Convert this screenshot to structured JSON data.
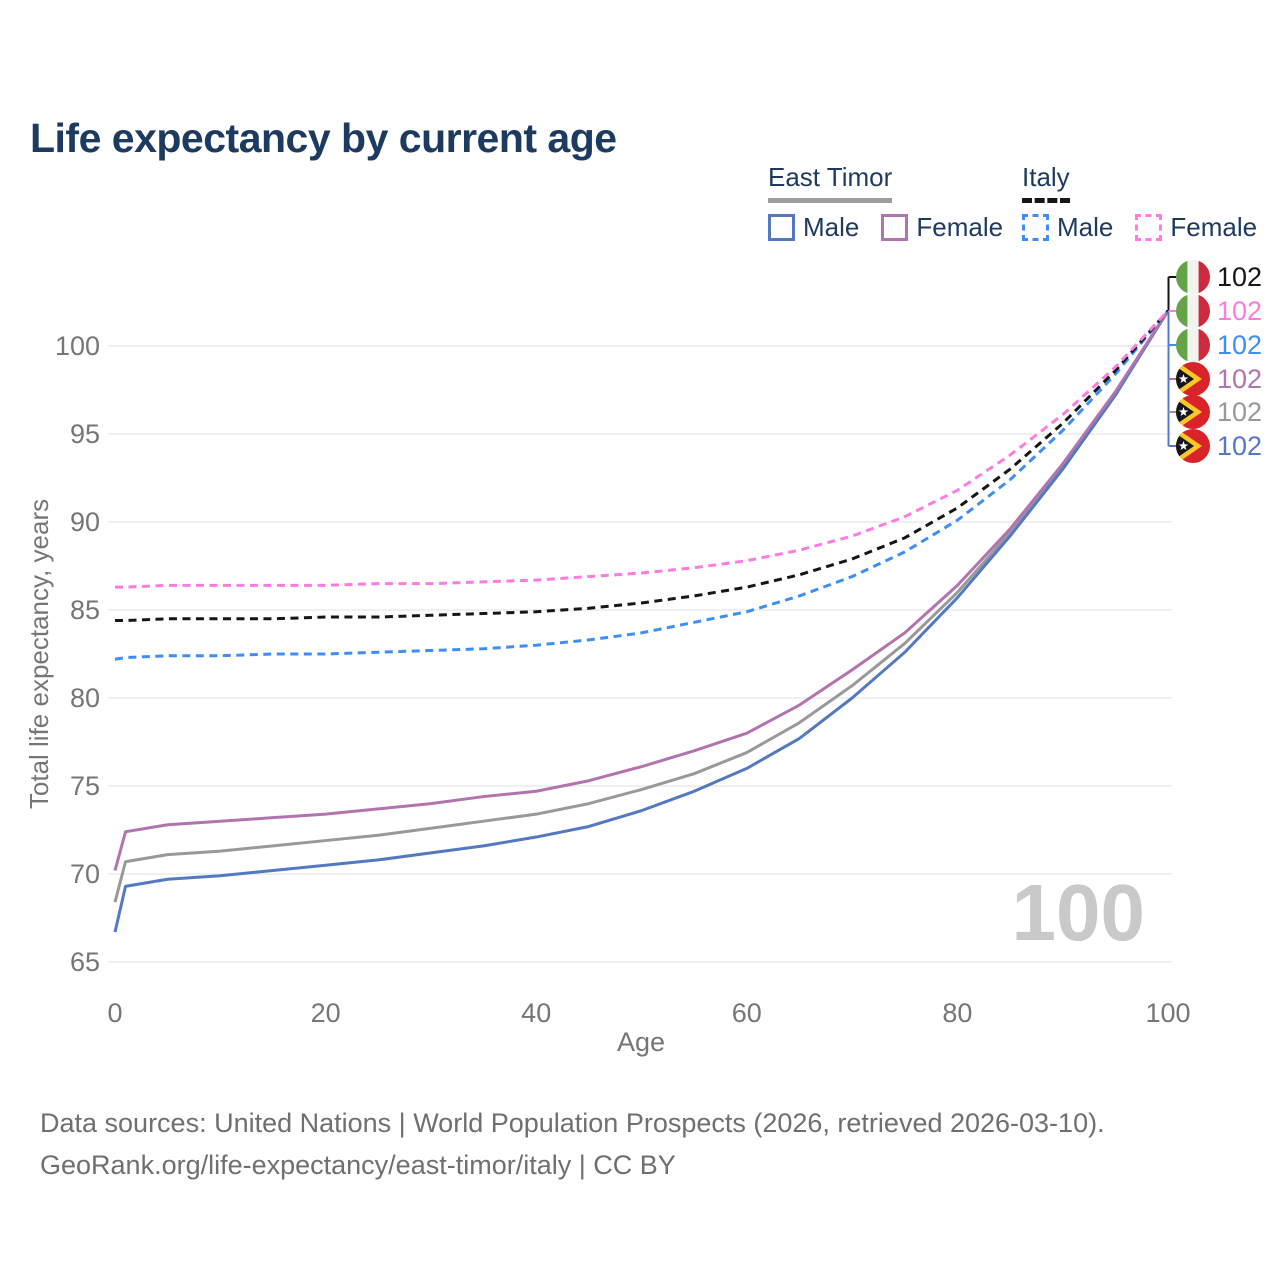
{
  "title": "Life expectancy by current age",
  "legend": {
    "groups": [
      {
        "name": "East Timor",
        "line_style": "solid",
        "underline_color": "#9e9e9e",
        "items": [
          {
            "label": "Male",
            "color": "#5479c1"
          },
          {
            "label": "Female",
            "color": "#b274af"
          }
        ]
      },
      {
        "name": "Italy",
        "line_style": "dashed",
        "underline_color": "#161616",
        "items": [
          {
            "label": "Male",
            "color": "#3e8ef7"
          },
          {
            "label": "Female",
            "color": "#ff7bdf"
          }
        ]
      }
    ]
  },
  "chart_data": {
    "type": "line",
    "title": "Life expectancy by current age",
    "xlabel": "Age",
    "ylabel": "Total life expectancy, years",
    "xlim": [
      0,
      100
    ],
    "ylim": [
      65,
      103.5
    ],
    "xticks": [
      0,
      20,
      40,
      60,
      80,
      100
    ],
    "yticks": [
      65,
      70,
      75,
      80,
      85,
      90,
      95,
      100
    ],
    "grid": "horizontal",
    "legend_position": "top-right",
    "x": [
      0,
      1,
      5,
      10,
      15,
      20,
      25,
      30,
      35,
      40,
      45,
      50,
      55,
      60,
      65,
      70,
      75,
      80,
      85,
      90,
      95,
      100
    ],
    "series": [
      {
        "name": "East Timor",
        "sex": "both",
        "color": "#999999",
        "dashed": false,
        "values": [
          68.4,
          70.7,
          71.1,
          71.3,
          71.6,
          71.9,
          72.2,
          72.6,
          73.0,
          73.4,
          74.0,
          74.8,
          75.7,
          76.9,
          78.6,
          80.7,
          83.1,
          86.0,
          89.4,
          93.1,
          97.3,
          102
        ]
      },
      {
        "name": "East Timor Male",
        "sex": "male",
        "color": "#5479c1",
        "dashed": false,
        "values": [
          66.7,
          69.3,
          69.7,
          69.9,
          70.2,
          70.5,
          70.8,
          71.2,
          71.6,
          72.1,
          72.7,
          73.6,
          74.7,
          76.0,
          77.7,
          80.0,
          82.6,
          85.7,
          89.2,
          93.0,
          97.2,
          102
        ]
      },
      {
        "name": "East Timor Female",
        "sex": "female",
        "color": "#b274af",
        "dashed": false,
        "values": [
          70.2,
          72.4,
          72.8,
          73.0,
          73.2,
          73.4,
          73.7,
          74.0,
          74.4,
          74.7,
          75.3,
          76.1,
          77.0,
          78.0,
          79.6,
          81.6,
          83.7,
          86.4,
          89.6,
          93.3,
          97.4,
          102
        ]
      },
      {
        "name": "Italy Male",
        "sex": "male",
        "color": "#3e8ef7",
        "dashed": true,
        "values": [
          82.2,
          82.3,
          82.4,
          82.4,
          82.5,
          82.5,
          82.6,
          82.7,
          82.8,
          83.0,
          83.3,
          83.7,
          84.3,
          84.9,
          85.8,
          86.9,
          88.3,
          90.1,
          92.4,
          95.2,
          98.4,
          102
        ]
      },
      {
        "name": "Italy",
        "sex": "both",
        "color": "#161616",
        "dashed": true,
        "values": [
          84.4,
          84.4,
          84.5,
          84.5,
          84.5,
          84.6,
          84.6,
          84.7,
          84.8,
          84.9,
          85.1,
          85.4,
          85.8,
          86.3,
          87.0,
          87.9,
          89.1,
          90.8,
          93.0,
          95.6,
          98.6,
          102
        ]
      },
      {
        "name": "Italy Female",
        "sex": "female",
        "color": "#ff7bdf",
        "dashed": true,
        "values": [
          86.3,
          86.3,
          86.4,
          86.4,
          86.4,
          86.4,
          86.5,
          86.5,
          86.6,
          86.7,
          86.9,
          87.1,
          87.4,
          87.8,
          88.4,
          89.2,
          90.3,
          91.8,
          93.8,
          96.1,
          98.8,
          102
        ]
      }
    ]
  },
  "end_labels": [
    {
      "value": "102",
      "color": "#161616",
      "flag": "italy"
    },
    {
      "value": "102",
      "color": "#ff7bdf",
      "flag": "italy"
    },
    {
      "value": "102",
      "color": "#3e8ef7",
      "flag": "italy"
    },
    {
      "value": "102",
      "color": "#b274af",
      "flag": "east-timor"
    },
    {
      "value": "102",
      "color": "#999999",
      "flag": "east-timor"
    },
    {
      "value": "102",
      "color": "#5479c1",
      "flag": "east-timor"
    }
  ],
  "watermark": "100",
  "footer": {
    "line1": "Data sources: United Nations | World Population Prospects (2026, retrieved 2026-03-10).",
    "line2": "GeoRank.org/life-expectancy/east-timor/italy | CC BY"
  }
}
